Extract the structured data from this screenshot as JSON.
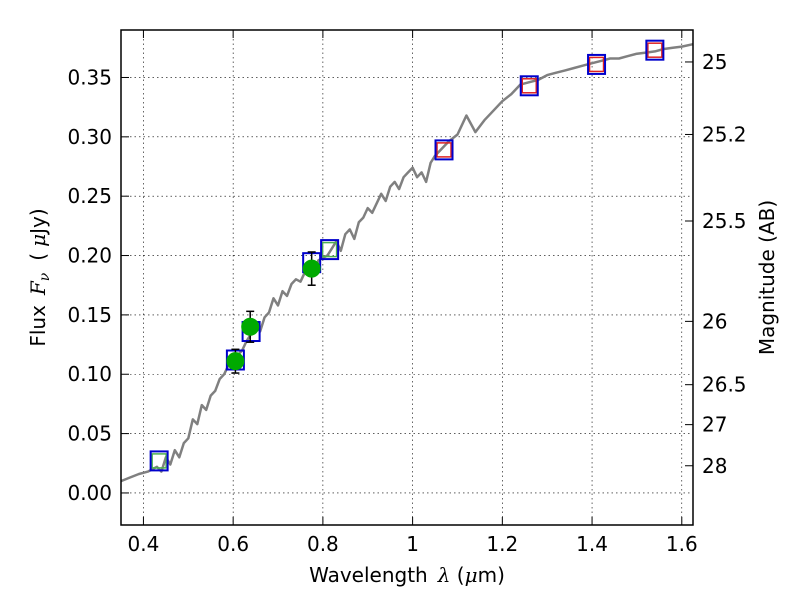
{
  "chart_data": {
    "type": "scatter",
    "xlabel": {
      "prefix": "Wavelength",
      "symbol": "λ",
      "unit_open": " (",
      "unit_mu": "μ",
      "unit_rest": "m)"
    },
    "ylabel": {
      "prefix": "Flux",
      "symbol": "F",
      "subscript": "ν",
      "unit_open": "(",
      "unit_mu": "μ",
      "unit_rest": "Jy)"
    },
    "ylabel_right": "Magnitude (AB)",
    "xlim": [
      0.35,
      1.625
    ],
    "ylim": [
      -0.027,
      0.39
    ],
    "grid": true,
    "x_ticks": [
      {
        "value": 0.4,
        "label": "0.4"
      },
      {
        "value": 0.6,
        "label": "0.6"
      },
      {
        "value": 0.8,
        "label": "0.8"
      },
      {
        "value": 1.0,
        "label": "1"
      },
      {
        "value": 1.2,
        "label": "1.2"
      },
      {
        "value": 1.4,
        "label": "1.4"
      },
      {
        "value": 1.6,
        "label": "1.6"
      }
    ],
    "y_ticks": [
      {
        "value": 0.0,
        "label": "0.00"
      },
      {
        "value": 0.05,
        "label": "0.05"
      },
      {
        "value": 0.1,
        "label": "0.10"
      },
      {
        "value": 0.15,
        "label": "0.15"
      },
      {
        "value": 0.2,
        "label": "0.20"
      },
      {
        "value": 0.25,
        "label": "0.25"
      },
      {
        "value": 0.3,
        "label": "0.30"
      },
      {
        "value": 0.35,
        "label": "0.35"
      }
    ],
    "mag_ticks": [
      {
        "label": "25",
        "value": 25.0
      },
      {
        "label": "25.2",
        "value": 25.2
      },
      {
        "label": "25.5",
        "value": 25.5
      },
      {
        "label": "26",
        "value": 26.0
      },
      {
        "label": "26.5",
        "value": 26.5
      },
      {
        "label": "27",
        "value": 27.0
      },
      {
        "label": "28",
        "value": 28.0
      }
    ],
    "colors": {
      "model_line": "#808080",
      "observed_fill": "#00aa00",
      "error_bar": "#000000",
      "model_box": "#0000cc",
      "green_box": "#4caf50",
      "red_box": "#dd2222"
    },
    "model_sed": {
      "x": [
        0.35,
        0.37,
        0.39,
        0.4,
        0.41,
        0.42,
        0.43,
        0.44,
        0.45,
        0.46,
        0.47,
        0.48,
        0.49,
        0.5,
        0.51,
        0.52,
        0.53,
        0.54,
        0.55,
        0.56,
        0.57,
        0.58,
        0.59,
        0.6,
        0.61,
        0.62,
        0.63,
        0.64,
        0.65,
        0.66,
        0.67,
        0.68,
        0.69,
        0.7,
        0.71,
        0.72,
        0.73,
        0.74,
        0.75,
        0.76,
        0.77,
        0.78,
        0.79,
        0.8,
        0.81,
        0.82,
        0.83,
        0.84,
        0.85,
        0.86,
        0.87,
        0.88,
        0.89,
        0.9,
        0.91,
        0.92,
        0.93,
        0.94,
        0.95,
        0.96,
        0.97,
        0.98,
        0.99,
        1.0,
        1.01,
        1.02,
        1.03,
        1.04,
        1.05,
        1.06,
        1.08,
        1.1,
        1.12,
        1.14,
        1.16,
        1.18,
        1.2,
        1.22,
        1.24,
        1.26,
        1.28,
        1.3,
        1.32,
        1.34,
        1.36,
        1.38,
        1.4,
        1.42,
        1.44,
        1.46,
        1.48,
        1.5,
        1.52,
        1.54,
        1.56,
        1.58,
        1.6,
        1.625
      ],
      "y": [
        0.01,
        0.013,
        0.016,
        0.017,
        0.018,
        0.02,
        0.022,
        0.018,
        0.03,
        0.024,
        0.036,
        0.03,
        0.042,
        0.046,
        0.062,
        0.058,
        0.074,
        0.07,
        0.082,
        0.086,
        0.096,
        0.1,
        0.108,
        0.112,
        0.116,
        0.12,
        0.128,
        0.134,
        0.142,
        0.136,
        0.148,
        0.152,
        0.164,
        0.158,
        0.17,
        0.166,
        0.176,
        0.18,
        0.178,
        0.186,
        0.19,
        0.184,
        0.196,
        0.198,
        0.2,
        0.206,
        0.212,
        0.204,
        0.218,
        0.222,
        0.214,
        0.228,
        0.232,
        0.24,
        0.236,
        0.244,
        0.252,
        0.246,
        0.258,
        0.262,
        0.256,
        0.266,
        0.27,
        0.274,
        0.266,
        0.27,
        0.262,
        0.278,
        0.284,
        0.288,
        0.296,
        0.302,
        0.318,
        0.304,
        0.314,
        0.322,
        0.33,
        0.336,
        0.344,
        0.346,
        0.348,
        0.352,
        0.354,
        0.356,
        0.358,
        0.36,
        0.362,
        0.364,
        0.366,
        0.366,
        0.368,
        0.37,
        0.371,
        0.372,
        0.374,
        0.375,
        0.376,
        0.378
      ]
    },
    "observed": [
      {
        "x": 0.605,
        "y": 0.111,
        "err": 0.01
      },
      {
        "x": 0.638,
        "y": 0.14,
        "err": 0.013
      },
      {
        "x": 0.775,
        "y": 0.189,
        "err": 0.014
      }
    ],
    "model_photometry": [
      {
        "x": 0.435,
        "y": 0.027,
        "inner": "green"
      },
      {
        "x": 0.605,
        "y": 0.112,
        "inner": "none"
      },
      {
        "x": 0.64,
        "y": 0.136,
        "inner": "none"
      },
      {
        "x": 0.775,
        "y": 0.194,
        "inner": "none"
      },
      {
        "x": 0.815,
        "y": 0.205,
        "inner": "green"
      },
      {
        "x": 1.07,
        "y": 0.289,
        "inner": "red"
      },
      {
        "x": 1.26,
        "y": 0.343,
        "inner": "red"
      },
      {
        "x": 1.41,
        "y": 0.361,
        "inner": "red"
      },
      {
        "x": 1.54,
        "y": 0.373,
        "inner": "red"
      }
    ]
  }
}
